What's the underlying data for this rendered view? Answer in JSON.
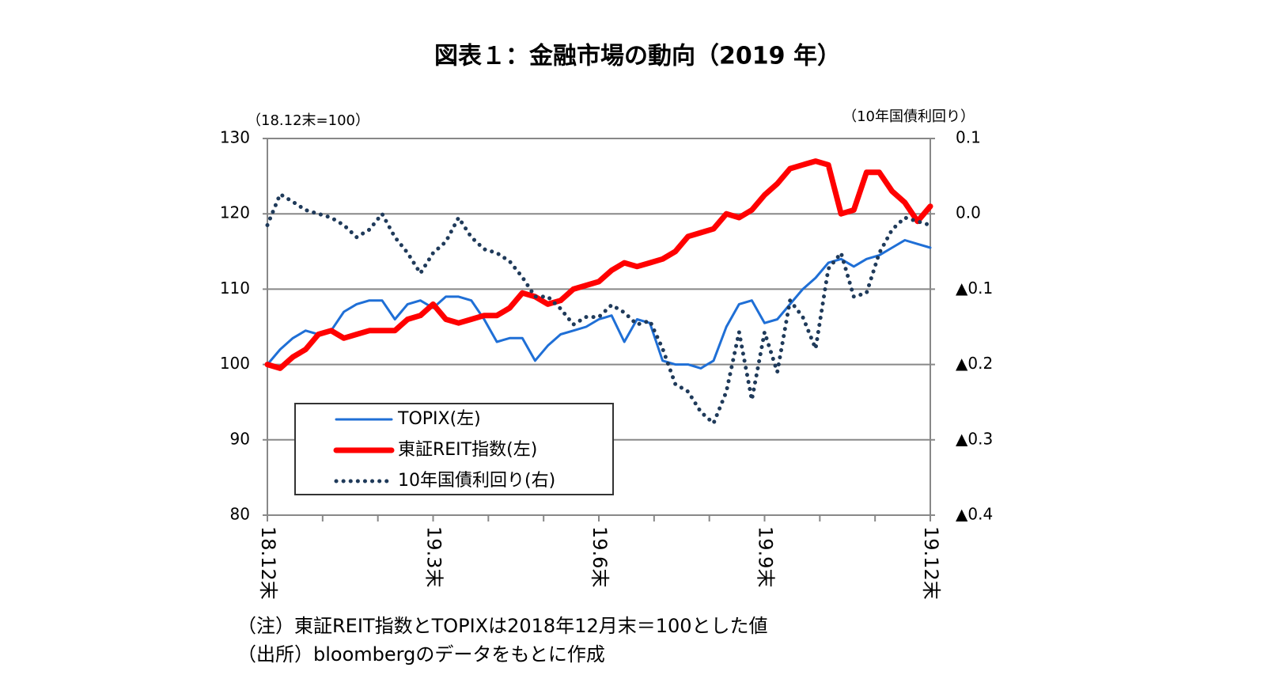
{
  "chart_data": {
    "type": "line",
    "title": "図表１：金融市場の動向（2019 年）",
    "y_unit_label": "（18.12末=100）",
    "y2_unit_label": "（10年国債利回り）",
    "categories": [
      "18.12末",
      null,
      null,
      null,
      null,
      null,
      null,
      null,
      null,
      null,
      null,
      null,
      null,
      "19.3末",
      null,
      null,
      null,
      null,
      null,
      null,
      null,
      null,
      null,
      null,
      null,
      null,
      "19.6末",
      null,
      null,
      null,
      null,
      null,
      null,
      null,
      null,
      null,
      null,
      null,
      null,
      "19.9末",
      null,
      null,
      null,
      null,
      null,
      null,
      null,
      null,
      null,
      null,
      null,
      null,
      "19.12末"
    ],
    "ylim": [
      80,
      130
    ],
    "yticks": [
      80,
      90,
      100,
      110,
      120,
      130
    ],
    "y2lim": [
      -0.4,
      0.1
    ],
    "y2ticks": [
      {
        "value": -0.4,
        "label": "▲0.4"
      },
      {
        "value": -0.3,
        "label": "▲0.3"
      },
      {
        "value": -0.2,
        "label": "▲0.2"
      },
      {
        "value": -0.1,
        "label": "▲0.1"
      },
      {
        "value": 0,
        "label": "0.0"
      },
      {
        "value": 0.1,
        "label": "0.1"
      }
    ],
    "grid": true,
    "series": [
      {
        "name": "TOPIX(左)",
        "color": "#1f6fd6",
        "width": 3,
        "values": [
          100,
          102,
          103.5,
          104.5,
          104,
          104.5,
          107,
          108,
          108.5,
          108.5,
          106,
          108,
          108.5,
          107.5,
          109,
          109,
          108.5,
          106,
          103,
          103.5,
          103.5,
          100.5,
          102.5,
          104,
          104.5,
          105,
          106,
          106.5,
          103,
          106,
          105.5,
          100.5,
          100,
          100,
          99.5,
          100.5,
          105,
          108,
          108.5,
          105.5,
          106,
          108,
          110,
          111.5,
          113.5,
          114,
          113,
          114,
          114.5,
          115.5,
          116.5,
          116,
          115.5
        ]
      },
      {
        "name": "東証REIT指数(左)",
        "color": "#ff0000",
        "width": 7,
        "values": [
          100,
          99.5,
          101,
          102,
          104,
          104.5,
          103.5,
          104,
          104.5,
          104.5,
          104.5,
          106,
          106.5,
          108,
          106,
          105.5,
          106,
          106.5,
          106.5,
          107.5,
          109.5,
          109,
          108,
          108.5,
          110,
          110.5,
          111,
          112.5,
          113.5,
          113,
          113.5,
          114,
          115,
          117,
          117.5,
          118,
          120,
          119.5,
          120.5,
          122.5,
          124,
          126,
          126.5,
          127,
          126.5,
          120,
          120.5,
          125.5,
          125.5,
          123,
          121.5,
          119,
          121
        ]
      },
      {
        "name": "10年国債利回り(右)",
        "color": "#1f3a5a",
        "width": 5,
        "dotted": true,
        "axis": "y2",
        "values": [
          -0.015,
          0.026,
          0.016,
          0.005,
          0,
          -0.005,
          -0.015,
          -0.031,
          -0.021,
          0,
          -0.031,
          -0.052,
          -0.079,
          -0.052,
          -0.037,
          -0.005,
          -0.031,
          -0.047,
          -0.052,
          -0.063,
          -0.084,
          -0.11,
          -0.11,
          -0.126,
          -0.147,
          -0.137,
          -0.137,
          -0.121,
          -0.131,
          -0.147,
          -0.142,
          -0.179,
          -0.226,
          -0.236,
          -0.263,
          -0.278,
          -0.236,
          -0.157,
          -0.247,
          -0.157,
          -0.21,
          -0.115,
          -0.137,
          -0.179,
          -0.073,
          -0.052,
          -0.11,
          -0.105,
          -0.052,
          -0.021,
          -0.005,
          -0.01,
          -0.015
        ]
      }
    ],
    "notes": [
      "（注）東証REIT指数とTOPIXは2018年12月末＝100とした値",
      "（出所）bloombergのデータをもとに作成"
    ]
  }
}
